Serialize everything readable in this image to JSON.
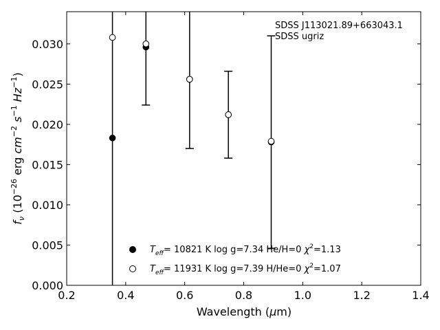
{
  "chart_data": {
    "type": "scatter",
    "annotations": [
      "SDSS J113021.89+663043.1",
      "SDSS ugriz"
    ],
    "xlabel": {
      "prefix": "Wavelength (",
      "mu": "μ",
      "suffix": "m)"
    },
    "ylabel": "f_ν (10^-26 erg cm^-2 s^-1 Hz^-1)",
    "xlim": [
      0.2,
      1.4
    ],
    "ylim": [
      0.0,
      0.034
    ],
    "xticks": [
      "0.2",
      "0.4",
      "0.6",
      "0.8",
      "1.0",
      "1.2",
      "1.4"
    ],
    "yticks": [
      "0.000",
      "0.005",
      "0.010",
      "0.015",
      "0.020",
      "0.025",
      "0.030"
    ],
    "xtick_values": [
      0.2,
      0.4,
      0.6,
      0.8,
      1.0,
      1.2,
      1.4
    ],
    "ytick_values": [
      0.0,
      0.005,
      0.01,
      0.015,
      0.02,
      0.025,
      0.03
    ],
    "grid": false,
    "legend_position": "bottom-center",
    "observed": {
      "x": [
        0.3551,
        0.4686,
        0.6166,
        0.748,
        0.8932
      ],
      "y": [
        0.0183,
        0.0296,
        0.0256,
        0.0212,
        0.0178
      ],
      "err": [
        0.04,
        0.0072,
        0.0086,
        0.0054,
        0.0132
      ]
    },
    "series": [
      {
        "name": "T_eff= 10821 K  log g=7.34  He/H=0  χ²=1.13",
        "marker": "filled",
        "legend_parts": [
          "T",
          "eff",
          "= 10821 K  log g=7.34  He/H=0  ",
          "χ",
          "2",
          "=1.13"
        ],
        "x": [
          0.3551,
          0.4686,
          0.6166,
          0.748,
          0.8932
        ],
        "y": [
          0.0183,
          0.0296,
          0.0256,
          0.0212,
          0.0178
        ]
      },
      {
        "name": "T_eff= 11931 K  log g=7.39  H/He=0  χ²=1.07",
        "marker": "open",
        "legend_parts": [
          "T",
          "eff",
          "= 11931 K  log g=7.39  H/He=0  ",
          "χ",
          "2",
          "=1.07"
        ],
        "x": [
          0.3551,
          0.4686,
          0.6166,
          0.748,
          0.8932
        ],
        "y": [
          0.0308,
          0.03,
          0.0256,
          0.0212,
          0.0179
        ]
      }
    ]
  }
}
